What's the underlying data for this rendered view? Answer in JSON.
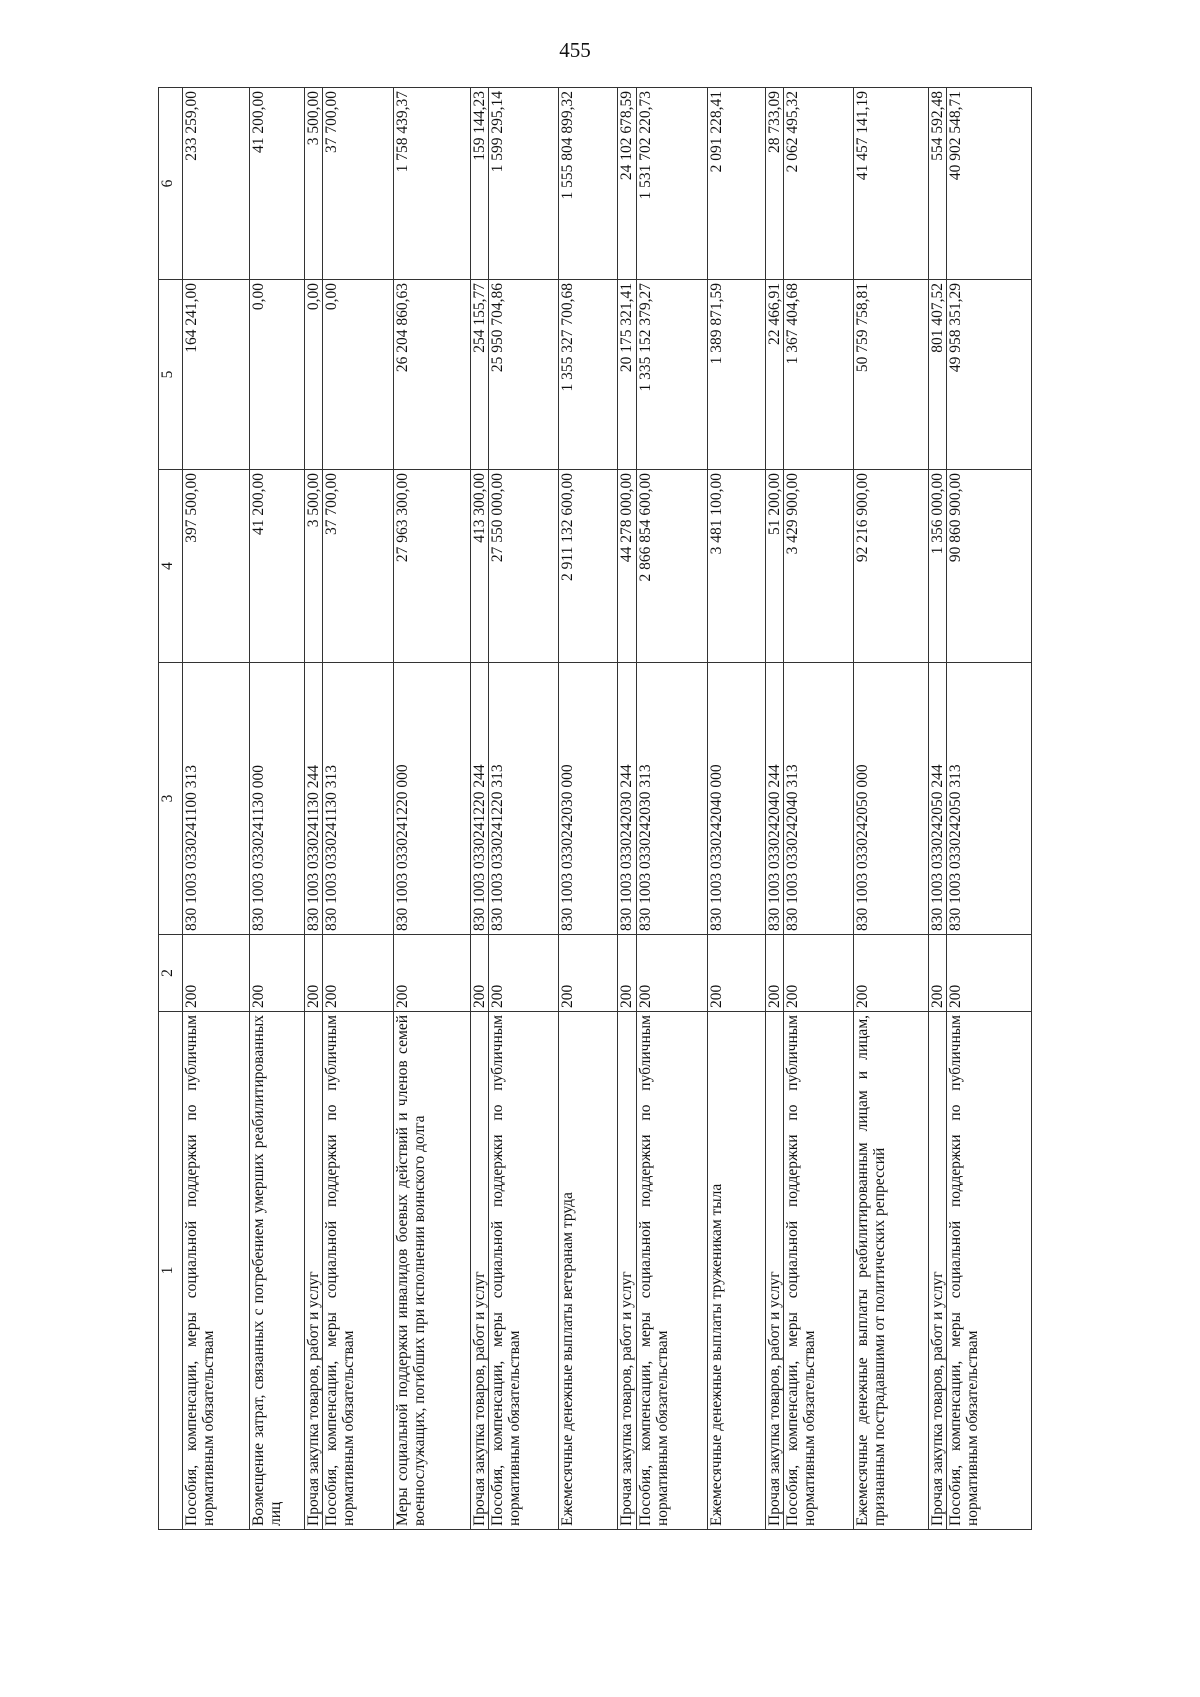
{
  "page_number": "455",
  "table": {
    "headers": [
      "1",
      "2",
      "3",
      "4",
      "5",
      "6"
    ],
    "rows": [
      {
        "c1": "Пособия, компенсации, меры социальной под­держки по публичным нормативным обязатель­ствам",
        "c2": "200",
        "c3": "830 1003 0330241100 313",
        "c4": "397 500,00",
        "c5": "164 241,00",
        "c6": "233 259,00"
      },
      {
        "c1": "Возмещение затрат, связанных с погребением умерших реабилитированных лиц",
        "c2": "200",
        "c3": "830 1003 0330241130 000",
        "c4": "41 200,00",
        "c5": "0,00",
        "c6": "41 200,00"
      },
      {
        "c1": "Прочая закупка товаров, работ и услуг",
        "c2": "200",
        "c3": "830 1003 0330241130 244",
        "c4": "3 500,00",
        "c5": "0,00",
        "c6": "3 500,00"
      },
      {
        "c1": "Пособия, компенсации, меры социальной под­держки по публичным нормативным обязатель­ствам",
        "c2": "200",
        "c3": "830 1003 0330241130 313",
        "c4": "37 700,00",
        "c5": "0,00",
        "c6": "37 700,00"
      },
      {
        "c1": "Меры социальной поддержки инвалидов боевых действий и членов семей военнослужащих, по­гибших при исполнении воинского долга",
        "c2": "200",
        "c3": "830 1003 0330241220 000",
        "c4": "27 963 300,00",
        "c5": "26 204 860,63",
        "c6": "1 758 439,37"
      },
      {
        "c1": "Прочая закупка товаров, работ и услуг",
        "c2": "200",
        "c3": "830 1003 0330241220 244",
        "c4": "413 300,00",
        "c5": "254 155,77",
        "c6": "159 144,23"
      },
      {
        "c1": "Пособия, компенсации, меры социальной под­держки по публичным нормативным обязатель­ствам",
        "c2": "200",
        "c3": "830 1003 0330241220 313",
        "c4": "27 550 000,00",
        "c5": "25 950 704,86",
        "c6": "1 599 295,14"
      },
      {
        "c1": "Ежемесячные денежные выплаты ветеранам труда",
        "c2": "200",
        "c3": "830 1003 0330242030 000",
        "c4": "2 911 132 600,00",
        "c5": "1 355 327 700,68",
        "c6": "1 555 804 899,32"
      },
      {
        "c1": "Прочая закупка товаров, работ и услуг",
        "c2": "200",
        "c3": "830 1003 0330242030 244",
        "c4": "44 278 000,00",
        "c5": "20 175 321,41",
        "c6": "24 102 678,59"
      },
      {
        "c1": "Пособия, компенсации, меры социальной под­держки по публичным нормативным обязатель­ствам",
        "c2": "200",
        "c3": "830 1003 0330242030 313",
        "c4": "2 866 854 600,00",
        "c5": "1 335 152 379,27",
        "c6": "1 531 702 220,73"
      },
      {
        "c1": "Ежемесячные денежные выплаты труженикам тыла",
        "c2": "200",
        "c3": "830 1003 0330242040 000",
        "c4": "3 481 100,00",
        "c5": "1 389 871,59",
        "c6": "2 091 228,41"
      },
      {
        "c1": "Прочая закупка товаров, работ и услуг",
        "c2": "200",
        "c3": "830 1003 0330242040 244",
        "c4": "51 200,00",
        "c5": "22 466,91",
        "c6": "28 733,09"
      },
      {
        "c1": "Пособия, компенсации, меры социальной под­держки по публичным нормативным обязатель­ствам",
        "c2": "200",
        "c3": "830 1003 0330242040 313",
        "c4": "3 429 900,00",
        "c5": "1 367 404,68",
        "c6": "2 062 495,32"
      },
      {
        "c1": "Ежемесячные денежные выплаты реабилитиро­ванным лицам и лицам, признанным пострадав­шими от политических репрессий",
        "c2": "200",
        "c3": "830 1003 0330242050 000",
        "c4": "92 216 900,00",
        "c5": "50 759 758,81",
        "c6": "41 457 141,19"
      },
      {
        "c1": "Прочая закупка товаров, работ и услуг",
        "c2": "200",
        "c3": "830 1003 0330242050 244",
        "c4": "1 356 000,00",
        "c5": "801 407,52",
        "c6": "554 592,48"
      },
      {
        "c1": "Пособия, компенсации, меры социальной под­держки по публичным нормативным обязатель­ствам",
        "c2": "200",
        "c3": "830 1003 0330242050 313",
        "c4": "90 860 900,00",
        "c5": "49 958 351,29",
        "c6": "40 902 548,71"
      }
    ]
  }
}
